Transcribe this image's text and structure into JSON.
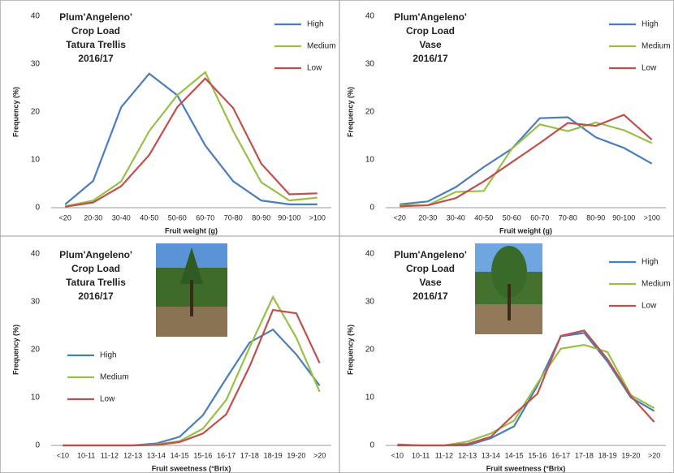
{
  "chart_data": [
    {
      "type": "line",
      "title": [
        "Plum'Angeleno'",
        "Crop Load",
        "Tatura Trellis",
        "2016/17"
      ],
      "x_label": "Fruit weight (g)",
      "y_label": "Frequency (%)",
      "categories": [
        "<20",
        "20-30",
        "30-40",
        "40-50",
        "50-60",
        "60-70",
        "70-80",
        "80-90",
        "90-100",
        ">100"
      ],
      "ylim": [
        0,
        40
      ],
      "yticks": [
        0,
        10,
        20,
        30,
        40
      ],
      "legend_position": "upper right",
      "series": [
        {
          "name": "High",
          "color": "#4a7ebb",
          "values": [
            0.7,
            5.6,
            21,
            28,
            23.5,
            13,
            5.5,
            1.5,
            0.7,
            0.7
          ]
        },
        {
          "name": "Medium",
          "color": "#98c047",
          "values": [
            0.3,
            1.5,
            5.5,
            16,
            23.5,
            28.3,
            16,
            5.3,
            1.5,
            2.1
          ]
        },
        {
          "name": "Low",
          "color": "#c0504d",
          "values": [
            0.2,
            1.1,
            4.5,
            11,
            21,
            27,
            20.8,
            9.2,
            2.8,
            3.0
          ]
        }
      ]
    },
    {
      "type": "line",
      "title": [
        "Plum'Angeleno'",
        "Crop Load",
        "Vase",
        "2016/17"
      ],
      "x_label": "Fruit weight (g)",
      "y_label": "Frequency (%)",
      "categories": [
        "<20",
        "20-30",
        "30-40",
        "40-50",
        "50-60",
        "60-70",
        "70-80",
        "80-90",
        "90-100",
        ">100"
      ],
      "ylim": [
        0,
        40
      ],
      "yticks": [
        0,
        10,
        20,
        30,
        40
      ],
      "legend_position": "upper right",
      "series": [
        {
          "name": "High",
          "color": "#4a7ebb",
          "values": [
            0.7,
            1.3,
            4.3,
            8.5,
            12.3,
            18.7,
            18.9,
            14.7,
            12.5,
            9.2
          ]
        },
        {
          "name": "Medium",
          "color": "#98c047",
          "values": [
            0.5,
            0.5,
            3.3,
            3.5,
            12.3,
            17.4,
            16,
            17.8,
            16.2,
            13.5
          ]
        },
        {
          "name": "Low",
          "color": "#c0504d",
          "values": [
            0.3,
            0.5,
            2,
            5.5,
            9.5,
            13.5,
            17.7,
            17.1,
            19.4,
            14.2
          ]
        }
      ]
    },
    {
      "type": "line",
      "title": [
        "Plum'Angeleno'",
        "Crop Load",
        "Tatura Trellis",
        "2016/17"
      ],
      "x_label": "Fruit sweetness (°Brix)",
      "y_label": "Frequency (%)",
      "categories": [
        "<10",
        "10-11",
        "11-12",
        "12-13",
        "13-14",
        "14-15",
        "15-16",
        "16-17",
        "17-18",
        "18-19",
        "19-20",
        ">20"
      ],
      "ylim": [
        0,
        40
      ],
      "yticks": [
        0,
        10,
        20,
        30,
        40
      ],
      "legend_position": "center left",
      "series": [
        {
          "name": "High",
          "color": "#4a7ebb",
          "values": [
            0,
            0,
            0,
            0,
            0.4,
            1.8,
            6.3,
            14,
            21.5,
            24.2,
            19,
            12.5
          ]
        },
        {
          "name": "Medium",
          "color": "#98c047",
          "values": [
            0,
            0,
            0,
            0,
            0.2,
            0.9,
            3.5,
            9.5,
            20.5,
            31,
            22.5,
            11.2
          ]
        },
        {
          "name": "Low",
          "color": "#c0504d",
          "values": [
            0,
            0,
            0,
            0,
            0.1,
            0.7,
            2.5,
            6.5,
            16.5,
            28.3,
            27.6,
            17.2
          ]
        }
      ]
    },
    {
      "type": "line",
      "title": [
        "Plum'Angeleno'",
        "Crop Load",
        "Vase",
        "2016/17"
      ],
      "x_label": "Fruit sweetness (°Brix)",
      "y_label": "Frequency (%)",
      "categories": [
        "<10",
        "10-11",
        "11-12",
        "12-13",
        "13-14",
        "14-15",
        "15-16",
        "16-17",
        "17-18",
        "18-19",
        "19-20",
        ">20"
      ],
      "ylim": [
        0,
        40
      ],
      "yticks": [
        0,
        10,
        20,
        30,
        40
      ],
      "legend_position": "upper right",
      "series": [
        {
          "name": "High",
          "color": "#4a7ebb",
          "values": [
            0.2,
            0,
            0,
            0,
            1.5,
            4,
            12.5,
            22.8,
            23.5,
            17.5,
            10,
            7.2
          ]
        },
        {
          "name": "Medium",
          "color": "#98c047",
          "values": [
            0,
            0,
            0,
            0.8,
            2.5,
            5.2,
            13,
            20.2,
            21,
            19.5,
            10.5,
            7.8
          ]
        },
        {
          "name": "Low",
          "color": "#c0504d",
          "values": [
            0,
            0,
            0,
            0.3,
            1.8,
            6.5,
            10.8,
            22.9,
            24,
            18,
            10.3,
            4.9
          ]
        }
      ]
    }
  ]
}
